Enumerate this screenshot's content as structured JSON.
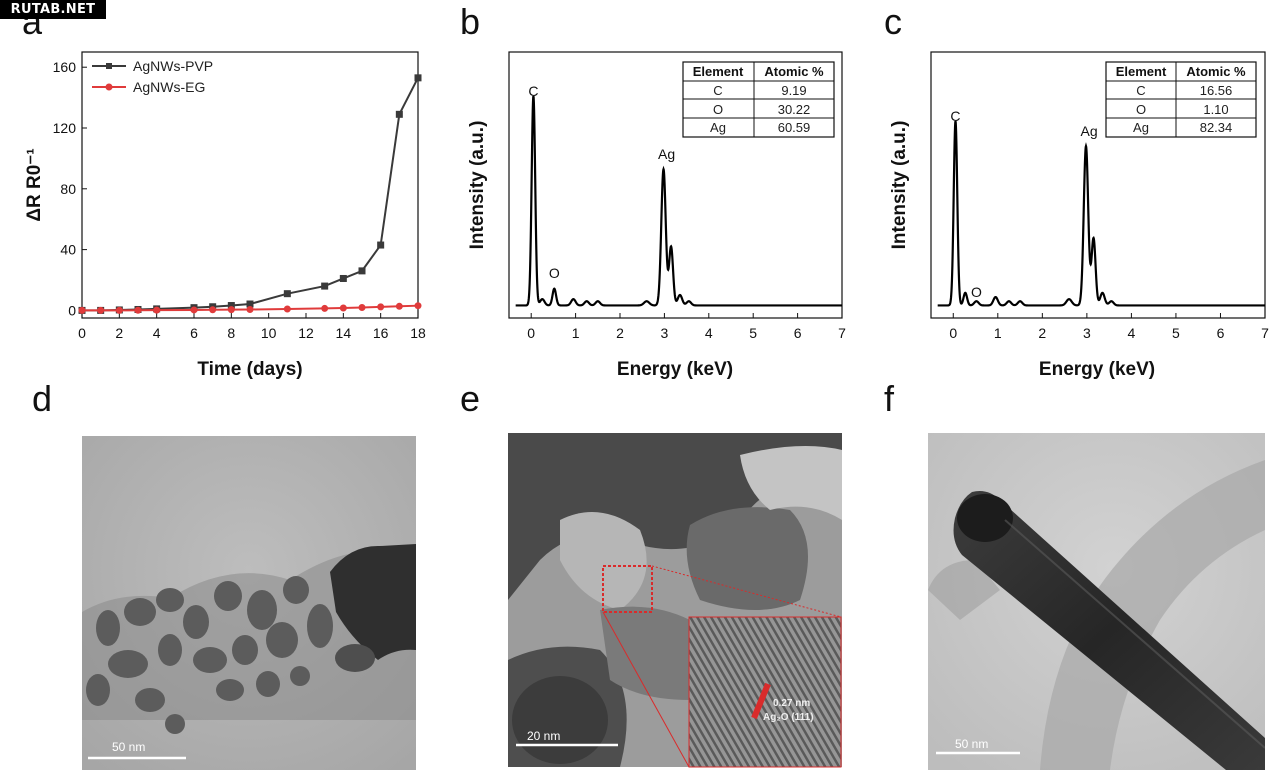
{
  "watermark": "RUTAB.NET",
  "panel_letters": [
    "a",
    "b",
    "c",
    "d",
    "e",
    "f"
  ],
  "colors": {
    "pvp": "#3a3a3a",
    "eg": "#e03b3b",
    "accent_red": "#d92b2b",
    "plot_line": "#000000"
  },
  "chart_data": [
    {
      "type": "line",
      "panel": "a",
      "xlabel": "Time (days)",
      "ylabel": "ΔR R0⁻¹",
      "xlim": [
        0,
        18
      ],
      "ylim": [
        -5,
        170
      ],
      "xticks": [
        0,
        2,
        4,
        6,
        8,
        10,
        12,
        14,
        16,
        18
      ],
      "xtick_labels": [
        "0",
        "2",
        "4",
        "6",
        "8",
        "10",
        "12",
        "14",
        "16",
        "18"
      ],
      "yticks": [
        0,
        40,
        80,
        120,
        160
      ],
      "ytick_labels": [
        "0",
        "40",
        "80",
        "120",
        "160"
      ],
      "grid": false,
      "legend_position": "top-left",
      "series": [
        {
          "name": "AgNWs-PVP",
          "marker": "square",
          "x": [
            0,
            1,
            2,
            3,
            4,
            6,
            7,
            8,
            9,
            11,
            13,
            14,
            15,
            16,
            17,
            18
          ],
          "y": [
            0,
            0,
            0.3,
            0.6,
            1,
            1.8,
            2.4,
            3.2,
            4.2,
            11,
            16,
            21,
            26,
            43,
            129,
            153
          ]
        },
        {
          "name": "AgNWs-EG",
          "marker": "circle",
          "x": [
            0,
            1,
            2,
            3,
            4,
            6,
            7,
            8,
            9,
            11,
            13,
            14,
            15,
            16,
            17,
            18
          ],
          "y": [
            0,
            0,
            0,
            0.1,
            0.2,
            0.3,
            0.4,
            0.5,
            0.6,
            0.9,
            1.3,
            1.6,
            1.9,
            2.3,
            2.7,
            3.1
          ]
        }
      ]
    },
    {
      "type": "line",
      "panel": "b",
      "xlabel": "Energy (keV)",
      "ylabel": "Intensity (a.u.)",
      "xlim": [
        -0.5,
        7
      ],
      "ylim": [
        0,
        1.27
      ],
      "xticks": [
        0,
        1,
        2,
        3,
        4,
        5,
        6,
        7
      ],
      "xtick_labels": [
        "0",
        "1",
        "2",
        "3",
        "4",
        "5",
        "6",
        "7"
      ],
      "baseline": 0.06,
      "peaks": [
        {
          "x": 0.05,
          "h": 1.0,
          "w": 0.04
        },
        {
          "x": 0.25,
          "h": 0.03,
          "w": 0.05
        },
        {
          "x": 0.52,
          "h": 0.08,
          "w": 0.04
        },
        {
          "x": 0.95,
          "h": 0.03,
          "w": 0.05
        },
        {
          "x": 1.25,
          "h": 0.02,
          "w": 0.05
        },
        {
          "x": 1.5,
          "h": 0.02,
          "w": 0.05
        },
        {
          "x": 2.6,
          "h": 0.02,
          "w": 0.06
        },
        {
          "x": 2.98,
          "h": 0.65,
          "w": 0.05
        },
        {
          "x": 3.15,
          "h": 0.28,
          "w": 0.045
        },
        {
          "x": 3.35,
          "h": 0.05,
          "w": 0.05
        },
        {
          "x": 3.55,
          "h": 0.02,
          "w": 0.05
        }
      ],
      "annotations": [
        {
          "text": "C",
          "x": 0.05,
          "y": 1.06
        },
        {
          "text": "O",
          "x": 0.52,
          "y": 0.19
        },
        {
          "text": "Ag",
          "x": 3.05,
          "y": 0.76
        }
      ]
    },
    {
      "type": "line",
      "panel": "c",
      "xlabel": "Energy (keV)",
      "ylabel": "Intensity (a.u.)",
      "xlim": [
        -0.5,
        7
      ],
      "ylim": [
        0,
        1.27
      ],
      "xticks": [
        0,
        1,
        2,
        3,
        4,
        5,
        6,
        7
      ],
      "xtick_labels": [
        "0",
        "1",
        "2",
        "3",
        "4",
        "5",
        "6",
        "7"
      ],
      "baseline": 0.06,
      "peaks": [
        {
          "x": 0.05,
          "h": 0.88,
          "w": 0.04
        },
        {
          "x": 0.27,
          "h": 0.06,
          "w": 0.04
        },
        {
          "x": 0.52,
          "h": 0.02,
          "w": 0.05
        },
        {
          "x": 0.95,
          "h": 0.04,
          "w": 0.05
        },
        {
          "x": 1.25,
          "h": 0.02,
          "w": 0.05
        },
        {
          "x": 1.5,
          "h": 0.02,
          "w": 0.05
        },
        {
          "x": 2.6,
          "h": 0.03,
          "w": 0.06
        },
        {
          "x": 2.98,
          "h": 0.76,
          "w": 0.05
        },
        {
          "x": 3.15,
          "h": 0.32,
          "w": 0.045
        },
        {
          "x": 3.35,
          "h": 0.06,
          "w": 0.05
        },
        {
          "x": 3.55,
          "h": 0.02,
          "w": 0.05
        }
      ],
      "annotations": [
        {
          "text": "C",
          "x": 0.05,
          "y": 0.94
        },
        {
          "text": "O",
          "x": 0.52,
          "y": 0.1
        },
        {
          "text": "Ag",
          "x": 3.05,
          "y": 0.87
        }
      ]
    }
  ],
  "tables": {
    "b": {
      "headers": [
        "Element",
        "Atomic %"
      ],
      "rows": [
        [
          "C",
          "9.19"
        ],
        [
          "O",
          "30.22"
        ],
        [
          "Ag",
          "60.59"
        ]
      ]
    },
    "c": {
      "headers": [
        "Element",
        "Atomic %"
      ],
      "rows": [
        [
          "C",
          "16.56"
        ],
        [
          "O",
          "1.10"
        ],
        [
          "Ag",
          "82.34"
        ]
      ]
    }
  },
  "micrographs": {
    "d": {
      "scale_bar": "50 nm"
    },
    "e": {
      "scale_bar": "20 nm",
      "inset_d_spacing": "0.27 nm",
      "inset_plane": "Ag₂O (111)"
    },
    "f": {
      "scale_bar": "50 nm"
    }
  }
}
